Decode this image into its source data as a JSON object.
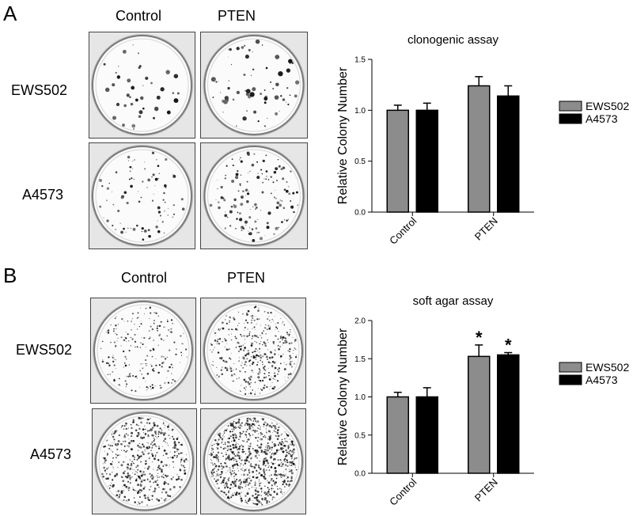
{
  "panels": {
    "a": {
      "letter": "A",
      "col_labels": [
        "Control",
        "PTEN"
      ],
      "row_labels": [
        "EWS502",
        "A4573"
      ]
    },
    "b": {
      "letter": "B",
      "col_labels": [
        "Control",
        "PTEN"
      ],
      "row_labels": [
        "EWS502",
        "A4573"
      ]
    }
  },
  "colors": {
    "EWS502": "#8c8c8c",
    "A4573": "#000000"
  },
  "chart_data": [
    {
      "type": "bar",
      "title": "clonogenic assay",
      "xlabel": "",
      "ylabel": "Relative Colony Number",
      "categories": [
        "Control",
        "PTEN"
      ],
      "series": [
        {
          "name": "EWS502",
          "values": [
            1.0,
            1.24
          ],
          "errors": [
            0.05,
            0.09
          ]
        },
        {
          "name": "A4573",
          "values": [
            1.0,
            1.14
          ],
          "errors": [
            0.07,
            0.1
          ]
        }
      ],
      "ylim": [
        0,
        1.5
      ],
      "yticks": [
        "0.0",
        "0.5",
        "1.0",
        "1.5"
      ],
      "significance": [],
      "legend": "right",
      "grid": false
    },
    {
      "type": "bar",
      "title": "soft agar assay",
      "xlabel": "",
      "ylabel": "Relative Colony Number",
      "categories": [
        "Control",
        "PTEN"
      ],
      "series": [
        {
          "name": "EWS502",
          "values": [
            1.0,
            1.53
          ],
          "errors": [
            0.06,
            0.15
          ]
        },
        {
          "name": "A4573",
          "values": [
            1.0,
            1.55
          ],
          "errors": [
            0.12,
            0.03
          ]
        }
      ],
      "ylim": [
        0,
        2.0
      ],
      "yticks": [
        "0.0",
        "0.5",
        "1.0",
        "1.5",
        "2.0"
      ],
      "significance": [
        {
          "category": "PTEN",
          "series": "EWS502",
          "mark": "*"
        },
        {
          "category": "PTEN",
          "series": "A4573",
          "mark": "*"
        }
      ],
      "legend": "right",
      "grid": false
    }
  ]
}
